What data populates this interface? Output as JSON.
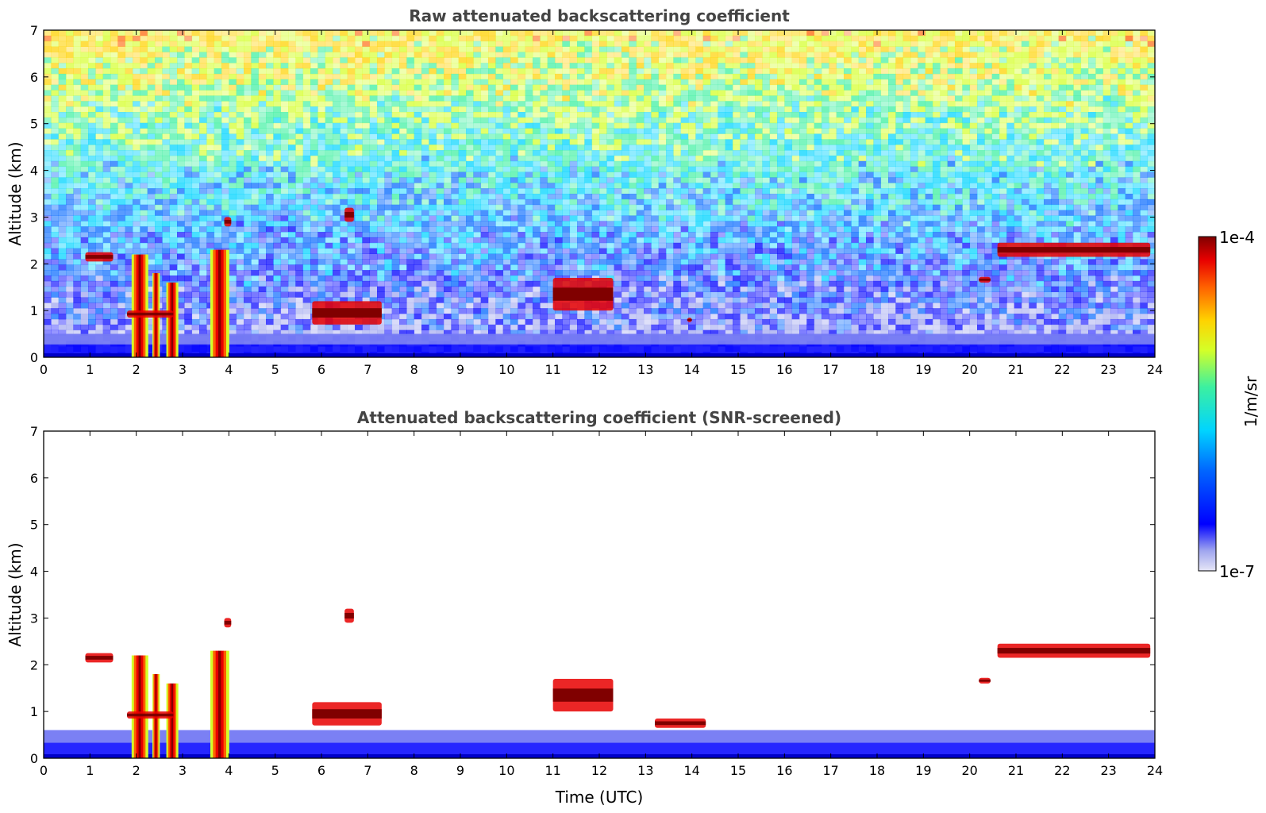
{
  "figure": {
    "colorbar": {
      "label": "1/m/sr",
      "max_label": "1e-4",
      "min_label": "1e-7",
      "scale": "log",
      "range": [
        1e-07,
        0.0001
      ],
      "colormap": [
        "#e6e6f6",
        "#a0a6ef",
        "#0000ff",
        "#0066ff",
        "#00d4ff",
        "#3cf0a0",
        "#d4ff28",
        "#ffd200",
        "#ff6000",
        "#e80000",
        "#800000"
      ]
    },
    "shared_xlabel": "Time (UTC)"
  },
  "chart_data": [
    {
      "type": "heatmap",
      "title": "Raw attenuated backscattering coefficient",
      "xlabel": "",
      "ylabel": "Altitude (km)",
      "xlim": [
        0,
        24
      ],
      "ylim": [
        0,
        7
      ],
      "xticks": [
        "0",
        "1",
        "2",
        "3",
        "4",
        "5",
        "6",
        "7",
        "8",
        "9",
        "10",
        "11",
        "12",
        "13",
        "14",
        "15",
        "16",
        "17",
        "18",
        "19",
        "20",
        "21",
        "22",
        "23",
        "24"
      ],
      "yticks": [
        "0",
        "1",
        "2",
        "3",
        "4",
        "5",
        "6",
        "7"
      ],
      "features": [
        {
          "kind": "noise_background",
          "x": [
            0,
            24
          ],
          "y": [
            0,
            7
          ],
          "level_bottom": "2e-7",
          "level_top": "2e-5"
        },
        {
          "kind": "boundary_layer",
          "x": [
            0,
            24
          ],
          "y": [
            0,
            0.5
          ]
        },
        {
          "kind": "precipitation_column",
          "x": [
            1.9,
            2.25
          ],
          "y": [
            0,
            2.2
          ]
        },
        {
          "kind": "precipitation_column",
          "x": [
            2.35,
            2.5
          ],
          "y": [
            0,
            1.8
          ]
        },
        {
          "kind": "precipitation_column",
          "x": [
            2.65,
            2.9
          ],
          "y": [
            0,
            1.6
          ]
        },
        {
          "kind": "precipitation_column",
          "x": [
            3.6,
            4.0
          ],
          "y": [
            0,
            2.3
          ]
        },
        {
          "kind": "cloud_layer",
          "x": [
            1.8,
            2.8
          ],
          "y": [
            0.85,
            1.0
          ]
        },
        {
          "kind": "cloud_patch",
          "x": [
            0.9,
            1.5
          ],
          "y": [
            2.05,
            2.25
          ]
        },
        {
          "kind": "cloud_patch",
          "x": [
            3.9,
            4.05
          ],
          "y": [
            2.8,
            3.0
          ]
        },
        {
          "kind": "cloud_patch",
          "x": [
            6.5,
            6.7
          ],
          "y": [
            2.9,
            3.2
          ]
        },
        {
          "kind": "cloud_patch",
          "x": [
            5.8,
            7.3
          ],
          "y": [
            0.7,
            1.2
          ]
        },
        {
          "kind": "cloud_patch",
          "x": [
            11.0,
            12.3
          ],
          "y": [
            1.0,
            1.7
          ]
        },
        {
          "kind": "cloud_patch",
          "x": [
            13.9,
            14.0
          ],
          "y": [
            0.75,
            0.85
          ]
        },
        {
          "kind": "cloud_patch",
          "x": [
            20.2,
            20.45
          ],
          "y": [
            1.6,
            1.72
          ]
        },
        {
          "kind": "cloud_layer",
          "x": [
            20.6,
            23.9
          ],
          "y": [
            2.15,
            2.45
          ]
        }
      ]
    },
    {
      "type": "heatmap",
      "title": "Attenuated backscattering coefficient (SNR-screened)",
      "xlabel": "Time (UTC)",
      "ylabel": "Altitude (km)",
      "xlim": [
        0,
        24
      ],
      "ylim": [
        0,
        7
      ],
      "xticks": [
        "0",
        "1",
        "2",
        "3",
        "4",
        "5",
        "6",
        "7",
        "8",
        "9",
        "10",
        "11",
        "12",
        "13",
        "14",
        "15",
        "16",
        "17",
        "18",
        "19",
        "20",
        "21",
        "22",
        "23",
        "24"
      ],
      "yticks": [
        "0",
        "1",
        "2",
        "3",
        "4",
        "5",
        "6",
        "7"
      ],
      "features": [
        {
          "kind": "boundary_layer",
          "x": [
            0,
            24
          ],
          "y": [
            0,
            0.6
          ]
        },
        {
          "kind": "precipitation_column",
          "x": [
            1.9,
            2.25
          ],
          "y": [
            0,
            2.2
          ]
        },
        {
          "kind": "precipitation_column",
          "x": [
            2.35,
            2.5
          ],
          "y": [
            0,
            1.8
          ]
        },
        {
          "kind": "precipitation_column",
          "x": [
            2.65,
            2.9
          ],
          "y": [
            0,
            1.6
          ]
        },
        {
          "kind": "precipitation_column",
          "x": [
            3.6,
            4.0
          ],
          "y": [
            0,
            2.3
          ]
        },
        {
          "kind": "cloud_layer",
          "x": [
            1.8,
            2.8
          ],
          "y": [
            0.85,
            1.0
          ]
        },
        {
          "kind": "cloud_patch",
          "x": [
            0.9,
            1.5
          ],
          "y": [
            2.05,
            2.25
          ]
        },
        {
          "kind": "cloud_patch",
          "x": [
            3.9,
            4.05
          ],
          "y": [
            2.8,
            3.0
          ]
        },
        {
          "kind": "cloud_patch",
          "x": [
            6.5,
            6.7
          ],
          "y": [
            2.9,
            3.2
          ]
        },
        {
          "kind": "cloud_patch",
          "x": [
            5.8,
            7.3
          ],
          "y": [
            0.7,
            1.2
          ]
        },
        {
          "kind": "cloud_patch",
          "x": [
            11.0,
            12.3
          ],
          "y": [
            1.0,
            1.7
          ]
        },
        {
          "kind": "cloud_patch",
          "x": [
            13.2,
            14.3
          ],
          "y": [
            0.65,
            0.85
          ]
        },
        {
          "kind": "cloud_patch",
          "x": [
            20.2,
            20.45
          ],
          "y": [
            1.6,
            1.72
          ]
        },
        {
          "kind": "cloud_layer",
          "x": [
            20.6,
            23.9
          ],
          "y": [
            2.15,
            2.45
          ]
        }
      ]
    }
  ]
}
